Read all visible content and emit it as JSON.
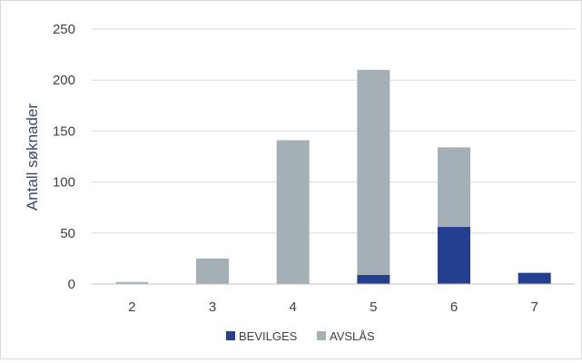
{
  "chart_data": {
    "type": "bar",
    "stacked": true,
    "categories": [
      "2",
      "3",
      "4",
      "5",
      "6",
      "7"
    ],
    "series": [
      {
        "name": "BEVILGES",
        "values": [
          0,
          0,
          0,
          9,
          56,
          11
        ],
        "color": "#243f8f"
      },
      {
        "name": "AVSLÅS",
        "values": [
          2,
          25,
          141,
          201,
          78,
          0
        ],
        "color": "#a5afb6"
      }
    ],
    "title": "",
    "xlabel": "",
    "ylabel": "Antall søknader",
    "ylim": [
      0,
      250
    ],
    "yticks": [
      "0",
      "50",
      "100",
      "150",
      "200",
      "250"
    ],
    "grid": "horizontal",
    "legend": "bottom"
  }
}
